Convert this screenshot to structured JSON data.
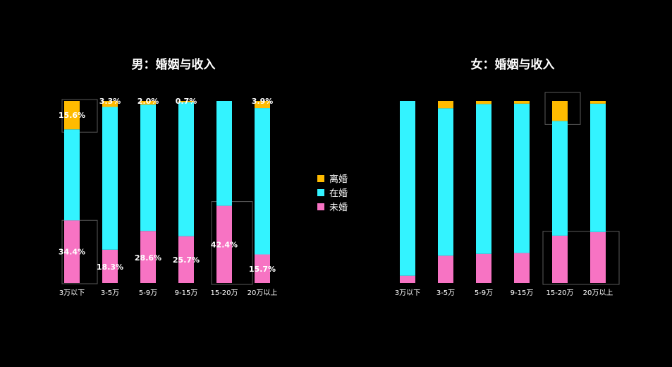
{
  "chart_data": [
    {
      "type": "bar",
      "stacked": true,
      "percent": true,
      "title": "男：婚姻与收入",
      "categories": [
        "3万以下",
        "3-5万",
        "5-9万",
        "9-15万",
        "15-20万",
        "20万以上"
      ],
      "series": [
        {
          "name": "未婚",
          "values": [
            34.4,
            18.3,
            28.6,
            25.7,
            42.4,
            15.7
          ]
        },
        {
          "name": "在婚",
          "values": [
            50.0,
            78.4,
            69.4,
            73.6,
            57.6,
            80.4
          ]
        },
        {
          "name": "离婚",
          "values": [
            15.6,
            3.3,
            2.0,
            0.7,
            0.0,
            3.9
          ]
        }
      ],
      "data_labels": {
        "未婚": [
          "34.4%",
          "18.3%",
          "28.6%",
          "25.7%",
          "42.4%",
          "15.7%"
        ],
        "离婚": [
          "15.6%",
          "3.3%",
          "2.0%",
          "0.7%",
          "",
          "3.9%"
        ]
      },
      "highlighted": [
        0,
        4
      ]
    },
    {
      "type": "bar",
      "stacked": true,
      "percent": true,
      "title": "女：婚姻与收入",
      "categories": [
        "3万以下",
        "3-5万",
        "5-9万",
        "9-15万",
        "15-20万",
        "20万以上"
      ],
      "series": [
        {
          "name": "未婚",
          "values": [
            4.0,
            15.0,
            16.0,
            16.5,
            26.0,
            28.0
          ]
        },
        {
          "name": "在婚",
          "values": [
            96.0,
            81.0,
            82.3,
            82.0,
            63.0,
            70.5
          ]
        },
        {
          "name": "离婚",
          "values": [
            0.0,
            4.0,
            1.7,
            1.5,
            11.0,
            1.5
          ]
        }
      ],
      "highlighted": [
        4,
        5
      ]
    }
  ],
  "legend": [
    {
      "label": "离婚",
      "color": "#ffbb00"
    },
    {
      "label": "在婚",
      "color": "#33f3ff"
    },
    {
      "label": "未婚",
      "color": "#f773c3"
    }
  ],
  "colors": {
    "未婚": "#f773c3",
    "在婚": "#33f3ff",
    "离婚": "#ffbb00",
    "background": "#000000"
  }
}
